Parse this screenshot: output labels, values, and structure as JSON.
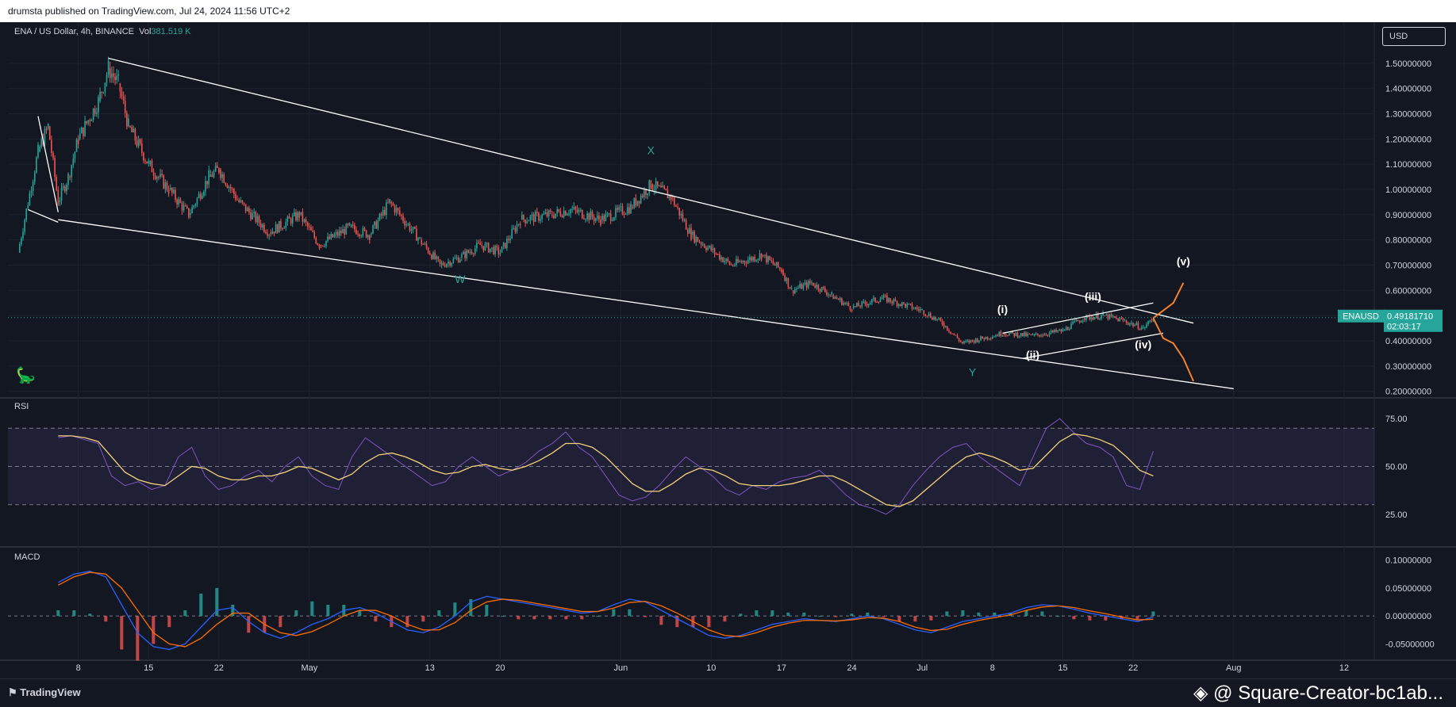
{
  "header": {
    "publisher": "drumsta published on TradingView.com, Jul 24, 2024 11:56 UTC+2",
    "symbol": "ENA / US Dollar, 4h, BINANCE",
    "volume_label": "Vol",
    "volume_value": "381.519 K",
    "currency_button": "USD"
  },
  "footer": {
    "brand": "TradingView",
    "watermark": "@ Square-Creator-bc1ab..."
  },
  "chart_data": [
    {
      "type": "candlestick",
      "pane": "price",
      "symbol": "ENAUSD",
      "ylim": [
        0.18,
        1.6
      ],
      "yticks": [
        1.5,
        1.4,
        1.3,
        1.2,
        1.1,
        1.0,
        0.9,
        0.8,
        0.7,
        0.6,
        0.5,
        0.4,
        0.3,
        0.2
      ],
      "ytick_labels": [
        "1.50000000",
        "1.40000000",
        "1.30000000",
        "1.20000000",
        "1.10000000",
        "1.00000000",
        "0.90000000",
        "0.80000000",
        "0.70000000",
        "0.60000000",
        "0.50000000",
        "0.40000000",
        "0.30000000",
        "0.20000000"
      ],
      "xticks": [
        "2024-04-08",
        "2024-04-15",
        "2024-04-22",
        "2024-05-01",
        "2024-05-13",
        "2024-05-20",
        "2024-06-01",
        "2024-06-10",
        "2024-06-17",
        "2024-06-24",
        "2024-07-01",
        "2024-07-08",
        "2024-07-15",
        "2024-07-22",
        "2024-08-01",
        "2024-08-12"
      ],
      "xtick_labels": [
        "8",
        "15",
        "22",
        "May",
        "13",
        "20",
        "Jun",
        "10",
        "17",
        "24",
        "Jul",
        "8",
        "15",
        "22",
        "Aug",
        "12"
      ],
      "xlim": [
        "2024-04-01",
        "2024-08-15"
      ],
      "approx_close_path": [
        {
          "x": "2024-04-02",
          "y": 0.75
        },
        {
          "x": "2024-04-04",
          "y": 1.15
        },
        {
          "x": "2024-04-05",
          "y": 1.25
        },
        {
          "x": "2024-04-06",
          "y": 0.95
        },
        {
          "x": "2024-04-07",
          "y": 1.05
        },
        {
          "x": "2024-04-08",
          "y": 1.2
        },
        {
          "x": "2024-04-10",
          "y": 1.35
        },
        {
          "x": "2024-04-11",
          "y": 1.48
        },
        {
          "x": "2024-04-12",
          "y": 1.42
        },
        {
          "x": "2024-04-13",
          "y": 1.25
        },
        {
          "x": "2024-04-15",
          "y": 1.1
        },
        {
          "x": "2024-04-17",
          "y": 1.0
        },
        {
          "x": "2024-04-19",
          "y": 0.9
        },
        {
          "x": "2024-04-21",
          "y": 1.05
        },
        {
          "x": "2024-04-22",
          "y": 1.08
        },
        {
          "x": "2024-04-24",
          "y": 0.95
        },
        {
          "x": "2024-04-27",
          "y": 0.83
        },
        {
          "x": "2024-04-30",
          "y": 0.9
        },
        {
          "x": "2024-05-02",
          "y": 0.78
        },
        {
          "x": "2024-05-05",
          "y": 0.85
        },
        {
          "x": "2024-05-07",
          "y": 0.82
        },
        {
          "x": "2024-05-09",
          "y": 0.95
        },
        {
          "x": "2024-05-10",
          "y": 0.9
        },
        {
          "x": "2024-05-12",
          "y": 0.8
        },
        {
          "x": "2024-05-14",
          "y": 0.7
        },
        {
          "x": "2024-05-16",
          "y": 0.73
        },
        {
          "x": "2024-05-18",
          "y": 0.78
        },
        {
          "x": "2024-05-20",
          "y": 0.75
        },
        {
          "x": "2024-05-22",
          "y": 0.88
        },
        {
          "x": "2024-05-25",
          "y": 0.9
        },
        {
          "x": "2024-05-27",
          "y": 0.92
        },
        {
          "x": "2024-05-30",
          "y": 0.88
        },
        {
          "x": "2024-06-02",
          "y": 0.93
        },
        {
          "x": "2024-06-04",
          "y": 1.02
        },
        {
          "x": "2024-06-06",
          "y": 0.97
        },
        {
          "x": "2024-06-08",
          "y": 0.82
        },
        {
          "x": "2024-06-10",
          "y": 0.76
        },
        {
          "x": "2024-06-12",
          "y": 0.7
        },
        {
          "x": "2024-06-15",
          "y": 0.74
        },
        {
          "x": "2024-06-17",
          "y": 0.68
        },
        {
          "x": "2024-06-18",
          "y": 0.6
        },
        {
          "x": "2024-06-20",
          "y": 0.63
        },
        {
          "x": "2024-06-22",
          "y": 0.58
        },
        {
          "x": "2024-06-24",
          "y": 0.53
        },
        {
          "x": "2024-06-27",
          "y": 0.57
        },
        {
          "x": "2024-07-01",
          "y": 0.52
        },
        {
          "x": "2024-07-03",
          "y": 0.47
        },
        {
          "x": "2024-07-05",
          "y": 0.39
        },
        {
          "x": "2024-07-07",
          "y": 0.41
        },
        {
          "x": "2024-07-09",
          "y": 0.43
        },
        {
          "x": "2024-07-12",
          "y": 0.42
        },
        {
          "x": "2024-07-15",
          "y": 0.44
        },
        {
          "x": "2024-07-17",
          "y": 0.49
        },
        {
          "x": "2024-07-19",
          "y": 0.5
        },
        {
          "x": "2024-07-21",
          "y": 0.48
        },
        {
          "x": "2024-07-23",
          "y": 0.45
        },
        {
          "x": "2024-07-24",
          "y": 0.492
        }
      ],
      "last_price": {
        "label": "ENAUSD",
        "value": "0.49181710",
        "countdown": "02:03:17",
        "value_num": 0.4918171
      },
      "up_color": "#26a69a",
      "down_color": "#ef5350",
      "lines": [
        {
          "id": "upper-trendline",
          "x1": "2024-04-11",
          "y1": 1.52,
          "x2": "2024-07-28",
          "y2": 0.47,
          "color": "#ffffff"
        },
        {
          "id": "lower-trendline",
          "x1": "2024-04-06",
          "y1": 0.88,
          "x2": "2024-08-01",
          "y2": 0.21,
          "color": "#ffffff"
        },
        {
          "id": "small-upper-channel",
          "x1": "2024-07-09",
          "y1": 0.43,
          "x2": "2024-07-24",
          "y2": 0.55,
          "color": "#ffffff"
        },
        {
          "id": "small-lower-channel",
          "x1": "2024-07-11",
          "y1": 0.33,
          "x2": "2024-07-25",
          "y2": 0.43,
          "color": "#ffffff"
        },
        {
          "id": "wedge-a",
          "x1": "2024-04-04",
          "y1": 1.29,
          "x2": "2024-04-06",
          "y2": 0.91,
          "color": "#ffffff"
        },
        {
          "id": "wedge-b",
          "x1": "2024-04-03",
          "y1": 0.92,
          "x2": "2024-04-06",
          "y2": 0.87,
          "color": "#ffffff"
        }
      ],
      "projection": {
        "color": "#f5822a",
        "up": [
          {
            "x": "2024-07-24",
            "y": 0.49
          },
          {
            "x": "2024-07-26",
            "y": 0.55
          },
          {
            "x": "2024-07-27",
            "y": 0.63
          }
        ],
        "down": [
          {
            "x": "2024-07-24",
            "y": 0.49
          },
          {
            "x": "2024-07-25",
            "y": 0.41
          },
          {
            "x": "2024-07-26",
            "y": 0.39
          },
          {
            "x": "2024-07-27",
            "y": 0.33
          },
          {
            "x": "2024-07-28",
            "y": 0.24
          }
        ]
      },
      "annotations": [
        {
          "text": "W",
          "x": "2024-05-16",
          "y": 0.63,
          "color": "#26a69a"
        },
        {
          "text": "X",
          "x": "2024-06-04",
          "y": 1.14,
          "color": "#26a69a"
        },
        {
          "text": "Y",
          "x": "2024-07-06",
          "y": 0.26,
          "color": "#26a69a"
        },
        {
          "text": "(i)",
          "x": "2024-07-09",
          "y": 0.51,
          "color": "#ffffff"
        },
        {
          "text": "(ii)",
          "x": "2024-07-12",
          "y": 0.33,
          "color": "#ffffff"
        },
        {
          "text": "(iii)",
          "x": "2024-07-18",
          "y": 0.56,
          "color": "#ffffff"
        },
        {
          "text": "(iv)",
          "x": "2024-07-23",
          "y": 0.37,
          "color": "#ffffff"
        },
        {
          "text": "(v)",
          "x": "2024-07-27",
          "y": 0.7,
          "color": "#ffffff"
        }
      ]
    },
    {
      "type": "line",
      "pane": "rsi",
      "title": "RSI",
      "ylim": [
        10,
        85
      ],
      "yticks": [
        75,
        50,
        25
      ],
      "ytick_labels": [
        "75.00",
        "50.00",
        "25.00"
      ],
      "band": [
        30,
        70
      ],
      "series": [
        {
          "color": "#7e57c2",
          "values": [
            65,
            66,
            64,
            62,
            45,
            40,
            42,
            38,
            40,
            55,
            60,
            45,
            38,
            40,
            45,
            48,
            42,
            50,
            55,
            45,
            40,
            38,
            55,
            65,
            60,
            55,
            50,
            45,
            40,
            42,
            50,
            55,
            50,
            45,
            48,
            52,
            58,
            62,
            68,
            60,
            55,
            45,
            35,
            32,
            34,
            40,
            48,
            55,
            50,
            45,
            38,
            35,
            40,
            38,
            42,
            44,
            45,
            48,
            42,
            35,
            30,
            28,
            25,
            30,
            40,
            48,
            55,
            60,
            62,
            55,
            50,
            45,
            40,
            55,
            70,
            75,
            68,
            62,
            60,
            55,
            40,
            38,
            58
          ]
        },
        {
          "color": "#f5d17a",
          "values": [
            66,
            66,
            65,
            63,
            55,
            47,
            43,
            41,
            40,
            45,
            50,
            49,
            45,
            43,
            43,
            45,
            45,
            47,
            50,
            49,
            46,
            43,
            46,
            52,
            56,
            57,
            55,
            52,
            48,
            46,
            47,
            50,
            51,
            49,
            48,
            50,
            53,
            57,
            62,
            62,
            60,
            55,
            48,
            41,
            37,
            37,
            41,
            46,
            49,
            48,
            45,
            41,
            40,
            40,
            40,
            41,
            43,
            45,
            45,
            42,
            38,
            34,
            30,
            29,
            32,
            38,
            44,
            50,
            55,
            57,
            55,
            52,
            48,
            49,
            56,
            63,
            67,
            66,
            64,
            61,
            55,
            48,
            45
          ]
        }
      ]
    },
    {
      "type": "bar+line",
      "pane": "macd",
      "title": "MACD",
      "ylim": [
        -0.075,
        0.115
      ],
      "yticks": [
        0.1,
        0.05,
        0.0,
        -0.05
      ],
      "ytick_labels": [
        "0.10000000",
        "0.05000000",
        "0.00000000",
        "-0.05000000"
      ],
      "macd": [
        0.06,
        0.075,
        0.08,
        0.07,
        0.02,
        -0.03,
        -0.055,
        -0.06,
        -0.05,
        -0.02,
        0.01,
        0.015,
        -0.01,
        -0.03,
        -0.04,
        -0.03,
        -0.015,
        -0.005,
        0.01,
        0.015,
        0.005,
        -0.01,
        -0.025,
        -0.03,
        -0.02,
        0.0,
        0.025,
        0.035,
        0.03,
        0.025,
        0.02,
        0.015,
        0.01,
        0.005,
        0.008,
        0.02,
        0.03,
        0.025,
        0.01,
        -0.005,
        -0.02,
        -0.035,
        -0.04,
        -0.035,
        -0.025,
        -0.015,
        -0.01,
        -0.005,
        -0.008,
        -0.01,
        -0.005,
        0.0,
        -0.005,
        -0.015,
        -0.025,
        -0.03,
        -0.02,
        -0.01,
        -0.005,
        0.0,
        0.005,
        0.015,
        0.02,
        0.018,
        0.012,
        0.005,
        0.0,
        -0.005,
        -0.01,
        -0.002
      ],
      "signal": [
        0.055,
        0.07,
        0.078,
        0.075,
        0.05,
        0.01,
        -0.03,
        -0.05,
        -0.055,
        -0.04,
        -0.015,
        0.005,
        0.005,
        -0.015,
        -0.03,
        -0.035,
        -0.028,
        -0.015,
        0.0,
        0.01,
        0.01,
        0.0,
        -0.015,
        -0.025,
        -0.025,
        -0.012,
        0.01,
        0.025,
        0.03,
        0.028,
        0.023,
        0.018,
        0.013,
        0.008,
        0.008,
        0.014,
        0.024,
        0.026,
        0.018,
        0.005,
        -0.01,
        -0.025,
        -0.035,
        -0.037,
        -0.03,
        -0.02,
        -0.013,
        -0.008,
        -0.008,
        -0.009,
        -0.007,
        -0.003,
        -0.004,
        -0.01,
        -0.02,
        -0.026,
        -0.024,
        -0.015,
        -0.008,
        -0.003,
        0.002,
        0.01,
        0.016,
        0.018,
        0.015,
        0.009,
        0.004,
        -0.002,
        -0.007,
        -0.006
      ],
      "macd_color": "#2962ff",
      "signal_color": "#ff6d00"
    }
  ]
}
